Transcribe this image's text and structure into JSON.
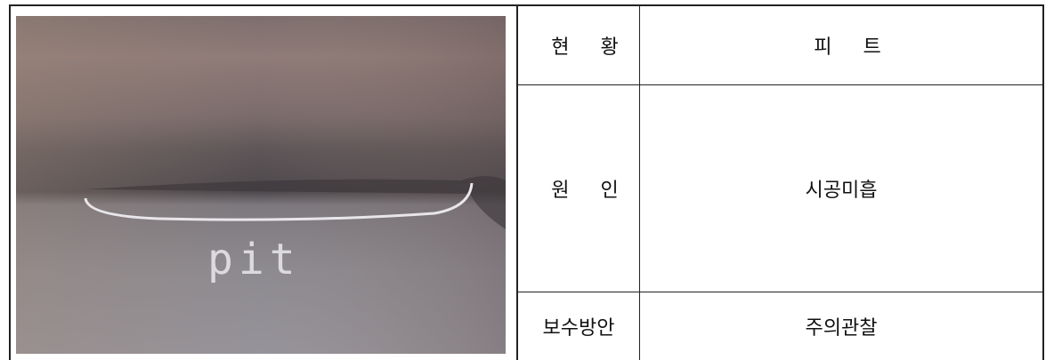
{
  "photo": {
    "annotation": "pit"
  },
  "table": {
    "rows": [
      [
        "현 황",
        "피 트"
      ],
      [
        "원 인",
        "시공미흡"
      ],
      [
        "보수방안",
        "주의관찰"
      ]
    ]
  }
}
